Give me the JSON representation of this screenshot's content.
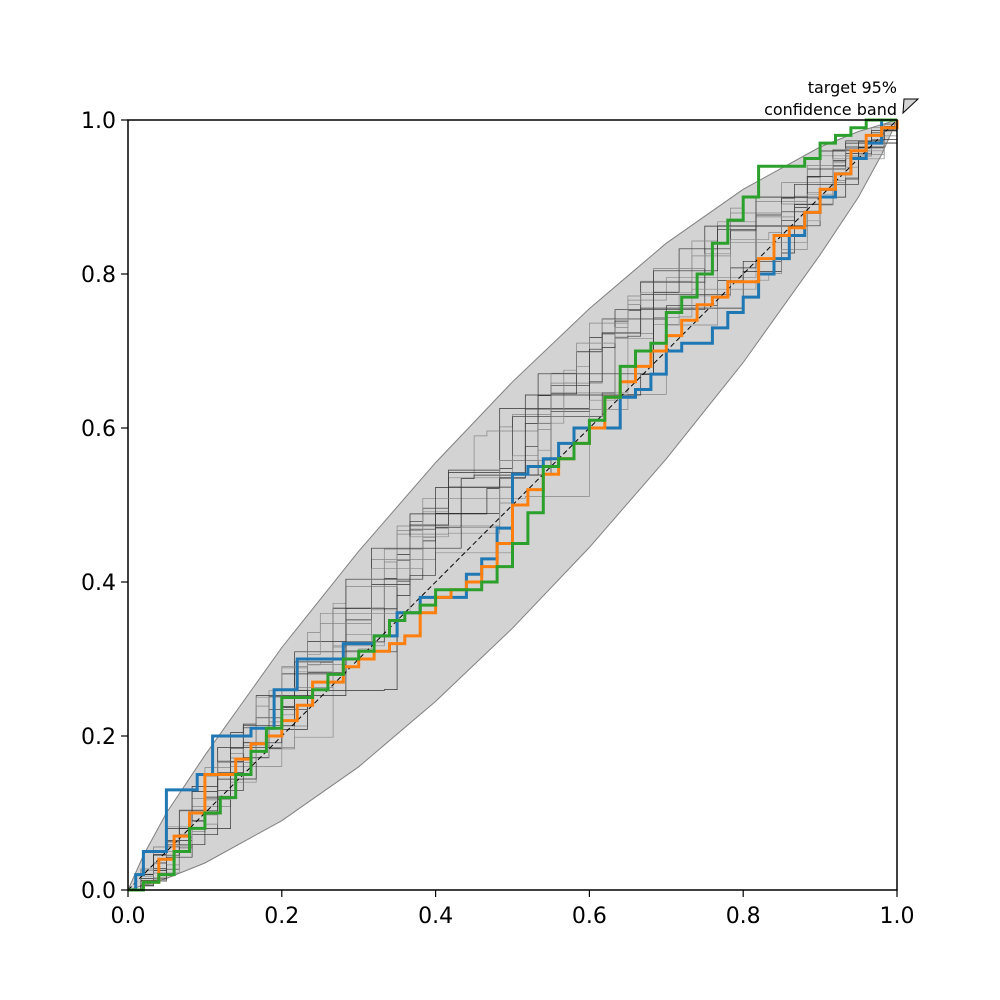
{
  "chart_data": {
    "type": "line",
    "title": "",
    "xlabel": "",
    "ylabel": "",
    "xlim": [
      0.0,
      1.0
    ],
    "ylim": [
      0.0,
      1.0
    ],
    "grid": false,
    "legend": "none",
    "x_ticks": [
      "0.0",
      "0.2",
      "0.4",
      "0.6",
      "0.8",
      "1.0"
    ],
    "y_ticks": [
      "0.0",
      "0.2",
      "0.4",
      "0.6",
      "0.8",
      "1.0"
    ],
    "annotation": {
      "line1": "target 95%",
      "line2": "confidence band"
    },
    "reference_line": {
      "x": [
        0,
        1
      ],
      "y": [
        0,
        1
      ],
      "style": "dashed",
      "color": "#000000"
    },
    "band": {
      "color": "#d3d3d3",
      "edge_color": "#808080",
      "upper": [
        [
          0,
          0
        ],
        [
          0.02,
          0.045
        ],
        [
          0.05,
          0.1
        ],
        [
          0.1,
          0.175
        ],
        [
          0.2,
          0.315
        ],
        [
          0.3,
          0.44
        ],
        [
          0.4,
          0.555
        ],
        [
          0.5,
          0.66
        ],
        [
          0.6,
          0.755
        ],
        [
          0.7,
          0.84
        ],
        [
          0.8,
          0.91
        ],
        [
          0.9,
          0.965
        ],
        [
          0.95,
          0.985
        ],
        [
          1,
          1
        ]
      ],
      "lower": [
        [
          0,
          0
        ],
        [
          0.05,
          0.015
        ],
        [
          0.1,
          0.035
        ],
        [
          0.2,
          0.09
        ],
        [
          0.3,
          0.16
        ],
        [
          0.4,
          0.245
        ],
        [
          0.5,
          0.34
        ],
        [
          0.6,
          0.445
        ],
        [
          0.7,
          0.56
        ],
        [
          0.8,
          0.685
        ],
        [
          0.9,
          0.825
        ],
        [
          0.95,
          0.9
        ],
        [
          0.98,
          0.955
        ],
        [
          1,
          1
        ]
      ]
    },
    "series": [
      {
        "color": "#1f77b4",
        "x": [
          0,
          0.01,
          0.02,
          0.04,
          0.05,
          0.07,
          0.09,
          0.11,
          0.13,
          0.16,
          0.19,
          0.22,
          0.25,
          0.28,
          0.32,
          0.35,
          0.38,
          0.42,
          0.44,
          0.46,
          0.48,
          0.5,
          0.52,
          0.54,
          0.56,
          0.58,
          0.6,
          0.62,
          0.64,
          0.66,
          0.68,
          0.7,
          0.72,
          0.74,
          0.76,
          0.78,
          0.8,
          0.82,
          0.84,
          0.86,
          0.88,
          0.9,
          0.92,
          0.94,
          0.96,
          0.98,
          1.0
        ],
        "y": [
          0,
          0.02,
          0.05,
          0.05,
          0.13,
          0.13,
          0.15,
          0.2,
          0.2,
          0.21,
          0.26,
          0.3,
          0.3,
          0.32,
          0.33,
          0.36,
          0.38,
          0.38,
          0.41,
          0.43,
          0.47,
          0.54,
          0.55,
          0.56,
          0.58,
          0.6,
          0.6,
          0.6,
          0.64,
          0.65,
          0.67,
          0.7,
          0.71,
          0.71,
          0.73,
          0.75,
          0.77,
          0.8,
          0.82,
          0.85,
          0.88,
          0.9,
          0.93,
          0.95,
          0.97,
          1.0,
          1.0
        ]
      },
      {
        "color": "#ff7f0e",
        "x": [
          0,
          0.02,
          0.04,
          0.06,
          0.08,
          0.1,
          0.12,
          0.14,
          0.16,
          0.18,
          0.2,
          0.22,
          0.24,
          0.26,
          0.28,
          0.3,
          0.32,
          0.34,
          0.36,
          0.38,
          0.4,
          0.42,
          0.44,
          0.46,
          0.48,
          0.5,
          0.52,
          0.54,
          0.56,
          0.58,
          0.6,
          0.62,
          0.64,
          0.66,
          0.68,
          0.7,
          0.72,
          0.74,
          0.76,
          0.78,
          0.8,
          0.82,
          0.84,
          0.86,
          0.88,
          0.9,
          0.92,
          0.94,
          0.96,
          0.98,
          1.0
        ],
        "y": [
          0,
          0.01,
          0.04,
          0.07,
          0.1,
          0.15,
          0.15,
          0.17,
          0.19,
          0.2,
          0.22,
          0.24,
          0.27,
          0.27,
          0.29,
          0.3,
          0.31,
          0.32,
          0.33,
          0.36,
          0.38,
          0.39,
          0.4,
          0.42,
          0.45,
          0.5,
          0.52,
          0.54,
          0.56,
          0.58,
          0.6,
          0.64,
          0.66,
          0.68,
          0.7,
          0.72,
          0.74,
          0.76,
          0.77,
          0.79,
          0.79,
          0.82,
          0.85,
          0.86,
          0.88,
          0.91,
          0.93,
          0.96,
          0.98,
          0.99,
          1.0
        ]
      },
      {
        "color": "#2ca02c",
        "x": [
          0,
          0.02,
          0.04,
          0.06,
          0.08,
          0.1,
          0.12,
          0.14,
          0.16,
          0.18,
          0.2,
          0.22,
          0.24,
          0.26,
          0.28,
          0.3,
          0.32,
          0.34,
          0.36,
          0.38,
          0.4,
          0.42,
          0.44,
          0.46,
          0.48,
          0.5,
          0.52,
          0.54,
          0.56,
          0.58,
          0.6,
          0.62,
          0.64,
          0.66,
          0.68,
          0.7,
          0.72,
          0.74,
          0.76,
          0.78,
          0.8,
          0.82,
          0.84,
          0.86,
          0.88,
          0.9,
          0.92,
          0.94,
          0.96,
          0.98,
          1.0
        ],
        "y": [
          0,
          0.01,
          0.02,
          0.05,
          0.08,
          0.1,
          0.12,
          0.15,
          0.18,
          0.21,
          0.25,
          0.25,
          0.26,
          0.28,
          0.3,
          0.31,
          0.33,
          0.35,
          0.36,
          0.37,
          0.39,
          0.39,
          0.39,
          0.4,
          0.42,
          0.45,
          0.49,
          0.55,
          0.56,
          0.58,
          0.61,
          0.64,
          0.68,
          0.7,
          0.71,
          0.75,
          0.77,
          0.8,
          0.84,
          0.87,
          0.9,
          0.94,
          0.94,
          0.94,
          0.95,
          0.97,
          0.98,
          0.99,
          1.0,
          1.0,
          1.0
        ]
      }
    ]
  }
}
